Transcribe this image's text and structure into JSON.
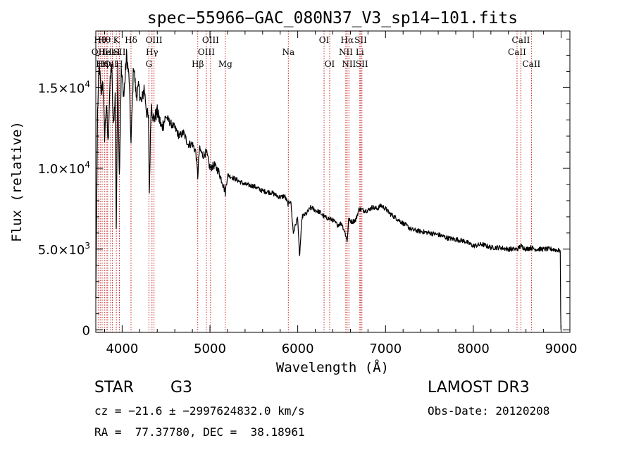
{
  "chart_data": {
    "type": "line",
    "title": "spec−55966−GAC_080N37_V3_sp14−101.fits",
    "xlabel": "Wavelength (Å)",
    "ylabel": "Flux (relative)",
    "xlim": [
      3700,
      9100
    ],
    "ylim": [
      -150,
      18500
    ],
    "xticks": [
      {
        "value": 4000,
        "label": "4000"
      },
      {
        "value": 5000,
        "label": "5000"
      },
      {
        "value": 6000,
        "label": "6000"
      },
      {
        "value": 7000,
        "label": "7000"
      },
      {
        "value": 8000,
        "label": "8000"
      },
      {
        "value": 9000,
        "label": "9000"
      }
    ],
    "yticks": [
      {
        "value": 0,
        "mant": "0",
        "exp": ""
      },
      {
        "value": 5000,
        "mant": "5.0×10",
        "exp": "3"
      },
      {
        "value": 10000,
        "mant": "1.0×10",
        "exp": "4"
      },
      {
        "value": 15000,
        "mant": "1.5×10",
        "exp": "4"
      }
    ],
    "series": [
      {
        "name": "spectrum",
        "x": [
          3700,
          3720,
          3740,
          3760,
          3780,
          3800,
          3820,
          3840,
          3860,
          3880,
          3900,
          3920,
          3933,
          3950,
          3968,
          3990,
          4020,
          4050,
          4080,
          4101,
          4130,
          4160,
          4190,
          4220,
          4250,
          4280,
          4300,
          4310,
          4330,
          4360,
          4400,
          4450,
          4500,
          4550,
          4600,
          4650,
          4700,
          4750,
          4800,
          4840,
          4861,
          4880,
          4920,
          4960,
          5000,
          5050,
          5100,
          5150,
          5175,
          5200,
          5300,
          5400,
          5500,
          5600,
          5700,
          5800,
          5850,
          5890,
          5920,
          5950,
          6000,
          6020,
          6050,
          6100,
          6150,
          6200,
          6250,
          6300,
          6350,
          6400,
          6450,
          6500,
          6540,
          6563,
          6580,
          6620,
          6660,
          6700,
          6750,
          6800,
          6850,
          6900,
          6950,
          7000,
          7050,
          7100,
          7150,
          7200,
          7300,
          7400,
          7500,
          7600,
          7700,
          7800,
          7900,
          8000,
          8100,
          8200,
          8300,
          8400,
          8500,
          8542,
          8600,
          8662,
          8700,
          8800,
          8900,
          8990,
          8995,
          8998
        ],
        "y": [
          2000,
          13500,
          16500,
          14500,
          15500,
          12000,
          14000,
          11500,
          15000,
          16500,
          12500,
          14500,
          6500,
          16000,
          9500,
          16000,
          14500,
          17000,
          15500,
          11500,
          16500,
          14500,
          15000,
          14000,
          15000,
          13500,
          13000,
          8500,
          14000,
          13000,
          13500,
          12500,
          13200,
          12800,
          12500,
          12000,
          12200,
          11500,
          11500,
          11000,
          9500,
          11200,
          10800,
          11000,
          10000,
          10200,
          9800,
          9000,
          8500,
          9600,
          9300,
          9000,
          8900,
          8600,
          8500,
          8200,
          8300,
          7800,
          8000,
          6000,
          7000,
          4500,
          7000,
          7200,
          7600,
          7400,
          7300,
          7000,
          6900,
          6800,
          6500,
          6600,
          6000,
          5500,
          6800,
          6700,
          6800,
          7500,
          7400,
          7400,
          7600,
          7500,
          7700,
          7500,
          7200,
          7000,
          6800,
          6600,
          6200,
          6100,
          6000,
          5900,
          5700,
          5600,
          5500,
          5200,
          5300,
          5100,
          5100,
          5000,
          5000,
          5200,
          5000,
          5100,
          5000,
          5000,
          5000,
          4900,
          1200,
          0
        ]
      }
    ],
    "lines": [
      {
        "wave": 3727,
        "label": "OII",
        "row": 2
      },
      {
        "wave": 3750,
        "label": "Hθ",
        "row": 1
      },
      {
        "wave": 3772,
        "label": "Hη",
        "row": 3
      },
      {
        "wave": 3798,
        "label": "Hθ",
        "row": 1
      },
      {
        "wave": 3820,
        "label": "HeI",
        "row": 2
      },
      {
        "wave": 3835,
        "label": "Hη",
        "row": 3
      },
      {
        "wave": 3869,
        "label": "OII",
        "row": 3
      },
      {
        "wave": 3889,
        "label": "HeI",
        "row": 2
      },
      {
        "wave": 3934,
        "label": "K",
        "row": 1
      },
      {
        "wave": 3968,
        "label": "H",
        "row": 3
      },
      {
        "wave": 3970,
        "label": "SII",
        "row": 2
      },
      {
        "wave": 4101,
        "label": "Hδ",
        "row": 1
      },
      {
        "wave": 4305,
        "label": "G",
        "row": 3
      },
      {
        "wave": 4340,
        "label": "Hγ",
        "row": 2
      },
      {
        "wave": 4363,
        "label": "OIII",
        "row": 1
      },
      {
        "wave": 4861,
        "label": "Hβ",
        "row": 3
      },
      {
        "wave": 4959,
        "label": "OIII",
        "row": 2
      },
      {
        "wave": 5007,
        "label": "OIII",
        "row": 1
      },
      {
        "wave": 5175,
        "label": "Mg",
        "row": 3
      },
      {
        "wave": 5893,
        "label": "Na",
        "row": 2
      },
      {
        "wave": 6300,
        "label": "OI",
        "row": 1
      },
      {
        "wave": 6364,
        "label": "OI",
        "row": 3
      },
      {
        "wave": 6548,
        "label": "NII",
        "row": 2
      },
      {
        "wave": 6563,
        "label": "Hα",
        "row": 1
      },
      {
        "wave": 6583,
        "label": "NII",
        "row": 3
      },
      {
        "wave": 6707,
        "label": "Li",
        "row": 2
      },
      {
        "wave": 6717,
        "label": "SII",
        "row": 1
      },
      {
        "wave": 6731,
        "label": "SII",
        "row": 3
      },
      {
        "wave": 8498,
        "label": "CaII",
        "row": 2
      },
      {
        "wave": 8542,
        "label": "CaII",
        "row": 1
      },
      {
        "wave": 8662,
        "label": "CaII",
        "row": 3
      }
    ],
    "colors": {
      "axis": "#000000",
      "spectrum": "#000000",
      "lines": "#c81e1e"
    }
  },
  "info": {
    "object_type": "STAR",
    "subclass": "G3",
    "survey": "LAMOST DR3",
    "cz": "cz = −21.6 ± −2997624832.0 km/s",
    "obs_date": "Obs-Date: 20120208",
    "coords": "RA =  77.37780, DEC =  38.18961"
  }
}
